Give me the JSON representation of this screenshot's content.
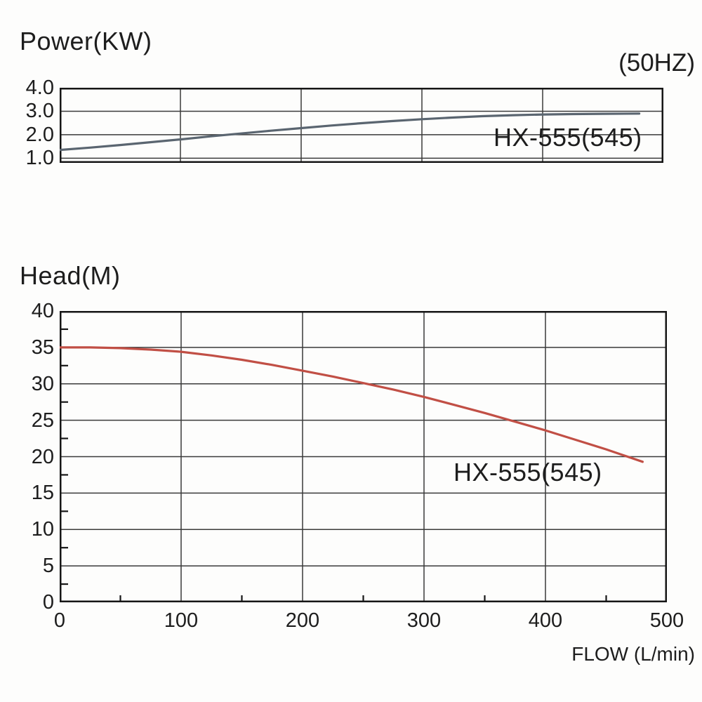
{
  "page": {
    "background": "#fdfdfc"
  },
  "chart_data": [
    {
      "id": "power",
      "type": "line",
      "title": "Power(KW)",
      "corner_label": "(50HZ)",
      "annotation": "HX-555(545)",
      "xlim": [
        0,
        500
      ],
      "ylim": [
        0.8,
        4.0
      ],
      "xticks": [
        0,
        100,
        200,
        300,
        400,
        500
      ],
      "yticks": [
        4.0,
        3.0,
        2.0,
        1.0
      ],
      "ytick_labels": [
        "4.0",
        "3.0",
        "2.0",
        "1.0"
      ],
      "grid": true,
      "legend": "none",
      "colors": {
        "grid": "#3a3a3a",
        "border": "#161616"
      },
      "series": [
        {
          "name": "HX-555(545)",
          "color": "#5a6570",
          "x": [
            0,
            25,
            50,
            75,
            100,
            125,
            150,
            175,
            200,
            225,
            250,
            275,
            300,
            325,
            350,
            375,
            400,
            425,
            450,
            480
          ],
          "y": [
            1.35,
            1.45,
            1.56,
            1.68,
            1.8,
            1.93,
            2.05,
            2.17,
            2.28,
            2.39,
            2.49,
            2.58,
            2.66,
            2.73,
            2.79,
            2.83,
            2.86,
            2.88,
            2.89,
            2.9
          ]
        }
      ]
    },
    {
      "id": "head",
      "type": "line",
      "title": "Head(M)",
      "xlabel": "FLOW (L/min)",
      "annotation": "HX-555(545)",
      "xlim": [
        0,
        500
      ],
      "ylim": [
        0,
        40
      ],
      "xticks": [
        0,
        100,
        200,
        300,
        400,
        500
      ],
      "xtick_labels": [
        "0",
        "100",
        "200",
        "300",
        "400",
        "500"
      ],
      "yticks": [
        40,
        35,
        30,
        25,
        20,
        15,
        10,
        5,
        0
      ],
      "ytick_labels": [
        "40",
        "35",
        "30",
        "25",
        "20",
        "15",
        "10",
        "5",
        "0"
      ],
      "y_minor_step": 2.5,
      "x_minor_step": 50,
      "grid": true,
      "legend": "none",
      "colors": {
        "grid": "#3a3a3a",
        "border": "#161616"
      },
      "series": [
        {
          "name": "HX-555(545)",
          "color": "#c14f45",
          "x": [
            0,
            25,
            50,
            75,
            100,
            125,
            150,
            175,
            200,
            225,
            250,
            275,
            300,
            325,
            350,
            375,
            400,
            425,
            450,
            480
          ],
          "y": [
            35.0,
            35.0,
            34.9,
            34.7,
            34.4,
            33.9,
            33.3,
            32.6,
            31.8,
            31.0,
            30.1,
            29.2,
            28.2,
            27.1,
            26.0,
            24.8,
            23.6,
            22.3,
            21.0,
            19.3
          ]
        }
      ]
    }
  ]
}
